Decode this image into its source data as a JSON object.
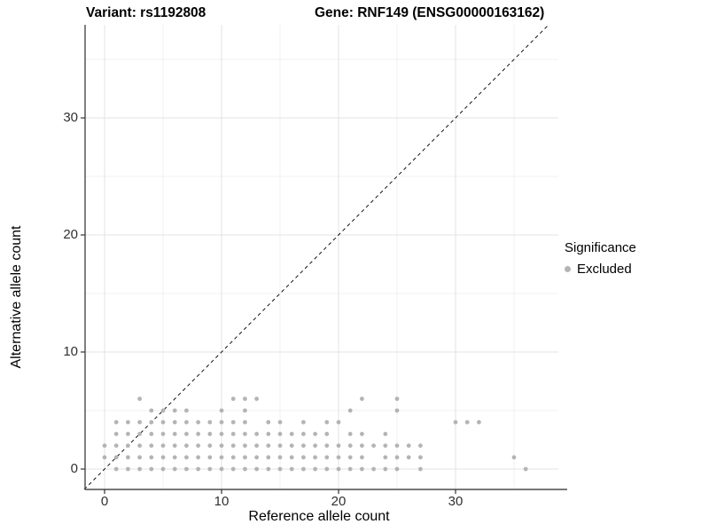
{
  "titles": {
    "left": "Variant: rs1192808",
    "right": "Gene: RNF149 (ENSG00000163162)"
  },
  "axes": {
    "x_label": "Reference allele count",
    "y_label": "Alternative allele count",
    "x_ticks": [
      "0",
      "10",
      "20",
      "30"
    ],
    "y_ticks": [
      "0",
      "10",
      "20",
      "30"
    ],
    "x_tick_values": [
      0,
      10,
      20,
      30
    ],
    "y_tick_values": [
      0,
      10,
      20,
      30
    ],
    "x_minor_values": [
      5,
      15,
      25,
      35
    ],
    "y_minor_values": [
      5,
      15,
      25,
      35
    ]
  },
  "legend": {
    "title": "Significance",
    "items": [
      {
        "label": "Excluded",
        "color": "#b4b4b4"
      }
    ]
  },
  "colors": {
    "point": "#b4b4b4",
    "major_grid": "#e3e3e3",
    "minor_grid": "#f0f0f0",
    "axis_line": "#4a4a4a",
    "identity_line": "#111111"
  },
  "chart_data": {
    "type": "scatter",
    "title": "Variant: rs1192808 — Gene: RNF149 (ENSG00000163162)",
    "xlabel": "Reference allele count",
    "ylabel": "Alternative allele count",
    "xlim": [
      -1.7,
      38.6
    ],
    "ylim": [
      -1.75,
      38.0
    ],
    "grid": "on",
    "legend_position": "right",
    "identity_line": {
      "type": "y=x",
      "style": "dashed",
      "color": "#111111"
    },
    "point_radius_px": 2.4,
    "series": [
      {
        "name": "Excluded",
        "color": "#b4b4b4",
        "rows": [
          {
            "y": 0,
            "x": [
              1,
              2,
              3,
              4,
              5,
              6,
              7,
              8,
              9,
              10,
              11,
              12,
              13,
              14,
              15,
              16,
              17,
              18,
              19,
              20,
              21,
              22,
              23,
              24,
              25,
              27,
              36
            ]
          },
          {
            "y": 1,
            "x": [
              0,
              1,
              2,
              3,
              4,
              5,
              6,
              7,
              8,
              9,
              10,
              11,
              12,
              13,
              14,
              15,
              16,
              17,
              18,
              19,
              20,
              21,
              22,
              24,
              25,
              26,
              27,
              35
            ]
          },
          {
            "y": 2,
            "x": [
              0,
              1,
              2,
              3,
              4,
              5,
              6,
              7,
              8,
              9,
              10,
              11,
              12,
              13,
              14,
              15,
              16,
              17,
              18,
              19,
              20,
              21,
              22,
              23,
              24,
              25,
              26,
              27
            ]
          },
          {
            "y": 3,
            "x": [
              1,
              2,
              3,
              4,
              5,
              6,
              7,
              8,
              9,
              10,
              11,
              12,
              13,
              14,
              15,
              16,
              17,
              18,
              19,
              21,
              22,
              24
            ]
          },
          {
            "y": 4,
            "x": [
              1,
              2,
              3,
              4,
              5,
              6,
              7,
              8,
              9,
              10,
              11,
              12,
              14,
              15,
              17,
              19,
              20,
              30,
              31,
              32
            ]
          },
          {
            "y": 5,
            "x": [
              4,
              5,
              6,
              7,
              10,
              12,
              21,
              25
            ]
          },
          {
            "y": 6,
            "x": [
              3,
              11,
              12,
              13,
              22,
              25
            ]
          }
        ]
      }
    ]
  }
}
